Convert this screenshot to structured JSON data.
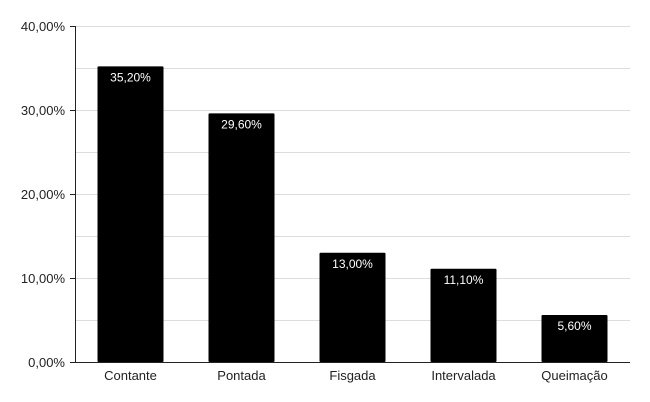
{
  "chart_data": {
    "type": "bar",
    "title": "",
    "xlabel": "",
    "ylabel": "",
    "categories": [
      "Contante",
      "Pontada",
      "Fisgada",
      "Intervalada",
      "Queimação"
    ],
    "values": [
      35.2,
      29.6,
      13.0,
      11.1,
      5.6
    ],
    "data_labels": [
      "35,20%",
      "29,60%",
      "13,00%",
      "11,10%",
      "5,60%"
    ],
    "ylim": [
      0,
      40
    ],
    "y_ticks": [
      0,
      10,
      20,
      30,
      40
    ],
    "y_tick_labels": [
      "0,00%",
      "10,00%",
      "20,00%",
      "30,00%",
      "40,00%"
    ],
    "grid": true,
    "bar_color": "#000000",
    "grid_color": "#dddddd",
    "axis_color": "#222222"
  }
}
